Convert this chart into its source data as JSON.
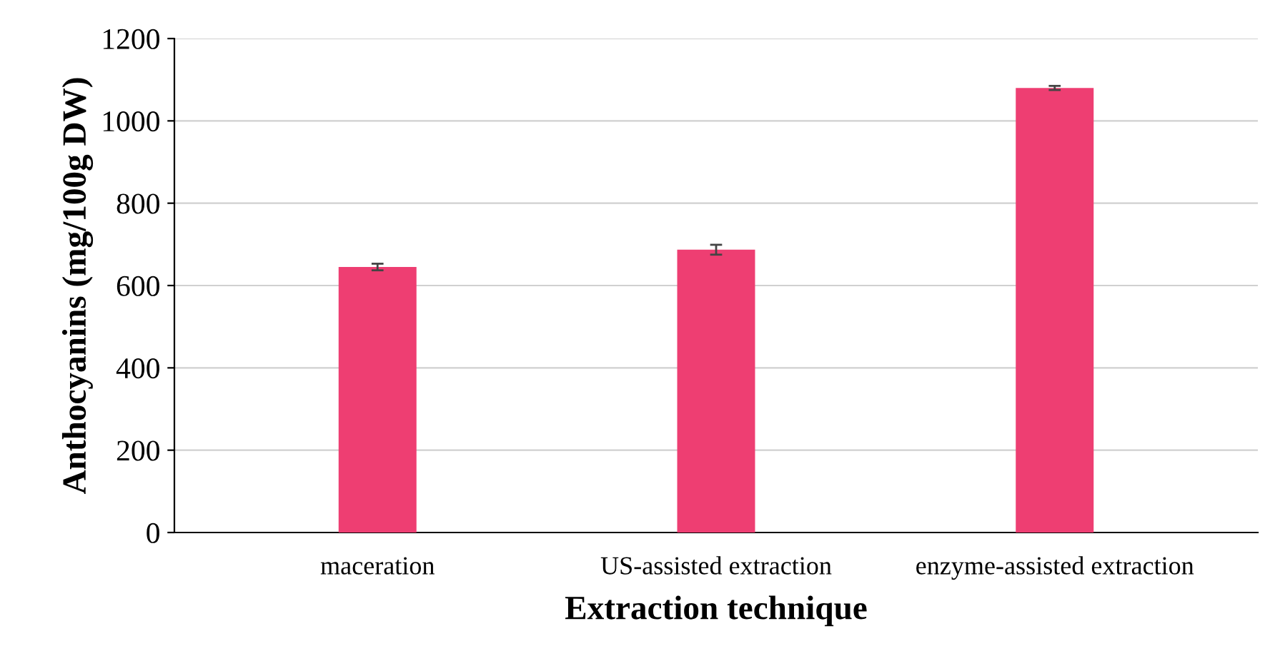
{
  "chart_data": {
    "type": "bar",
    "xlabel": "Extraction technique",
    "ylabel": "Anthocyanins (mg/100g DW)",
    "categories": [
      "maceration",
      "US-assisted extraction",
      "enzyme-assisted extraction"
    ],
    "values": [
      645,
      687,
      1080
    ],
    "errors": [
      8,
      12,
      5
    ],
    "color": "#ee3e72",
    "ylim": [
      0,
      1200
    ],
    "yticks": [
      0,
      200,
      400,
      600,
      800,
      1000,
      1200
    ],
    "grid": "y"
  }
}
